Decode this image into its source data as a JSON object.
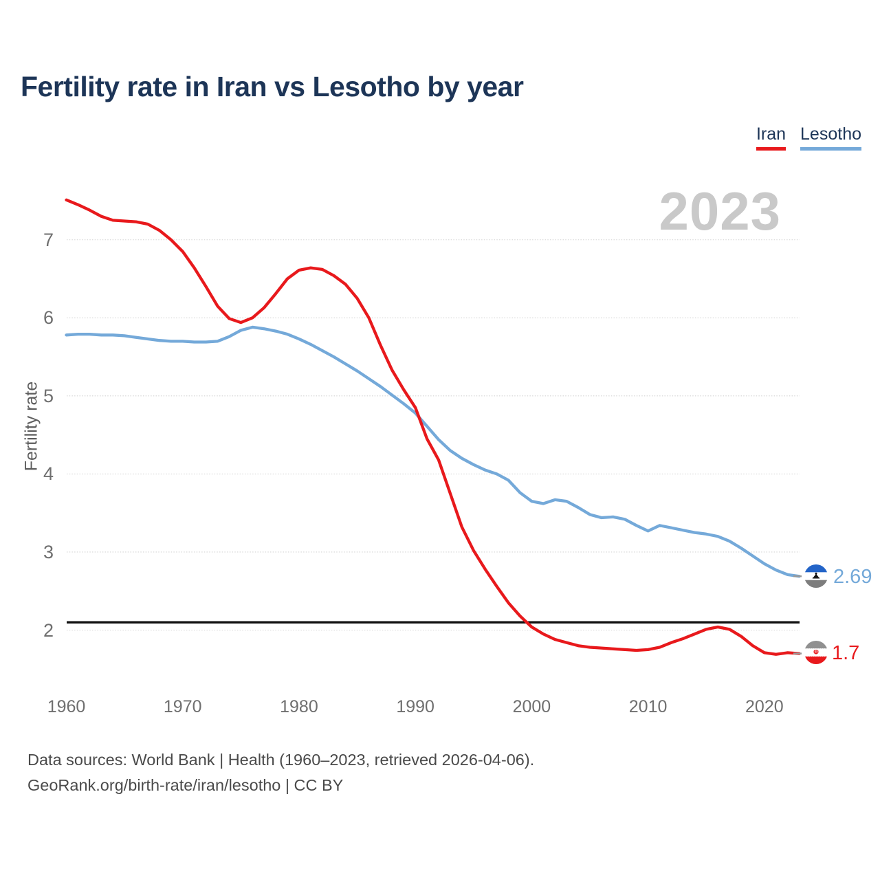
{
  "title": "Fertility rate in Iran vs Lesotho by year",
  "watermark_year": "2023",
  "legend": {
    "iran_label": "Iran",
    "lesotho_label": "Lesotho"
  },
  "axis": {
    "y_title": "Fertility rate",
    "y_ticks": [
      2,
      3,
      4,
      5,
      6,
      7
    ],
    "x_ticks": [
      1960,
      1970,
      1980,
      1990,
      2000,
      2010,
      2020
    ]
  },
  "end_labels": {
    "iran": "1.7",
    "lesotho": "2.69"
  },
  "footer": {
    "line1": "Data sources: World Bank | Health (1960–2023, retrieved 2026-04-06).",
    "line2": "GeoRank.org/birth-rate/iran/lesotho | CC BY"
  },
  "colors": {
    "iran": "#e8191c",
    "lesotho": "#74a9d9",
    "title_text": "#1d3557",
    "watermark": "#c9c9c9",
    "axis_text": "#6f6f6f",
    "footer_text": "#4a4a4a",
    "gridline": "#d4d4d4",
    "replacement_line": "#111111",
    "end_tick": "#999999"
  },
  "chart_data": {
    "type": "line",
    "title": "Fertility rate in Iran vs Lesotho by year",
    "xlabel": "",
    "ylabel": "Fertility rate",
    "xlim": [
      1960,
      2023
    ],
    "ylim": [
      1.55,
      7.65
    ],
    "grid": "horizontal",
    "legend_position": "top-right",
    "reference_line": {
      "value": 2.1,
      "meaning": "replacement-level fertility"
    },
    "x": [
      1960,
      1961,
      1962,
      1963,
      1964,
      1965,
      1966,
      1967,
      1968,
      1969,
      1970,
      1971,
      1972,
      1973,
      1974,
      1975,
      1976,
      1977,
      1978,
      1979,
      1980,
      1981,
      1982,
      1983,
      1984,
      1985,
      1986,
      1987,
      1988,
      1989,
      1990,
      1991,
      1992,
      1993,
      1994,
      1995,
      1996,
      1997,
      1998,
      1999,
      2000,
      2001,
      2002,
      2003,
      2004,
      2005,
      2006,
      2007,
      2008,
      2009,
      2010,
      2011,
      2012,
      2013,
      2014,
      2015,
      2016,
      2017,
      2018,
      2019,
      2020,
      2021,
      2022,
      2023
    ],
    "series": [
      {
        "name": "Iran",
        "color": "#e8191c",
        "end_value_label": "1.7",
        "values": [
          7.51,
          7.45,
          7.38,
          7.3,
          7.25,
          7.24,
          7.23,
          7.2,
          7.12,
          7.0,
          6.85,
          6.64,
          6.4,
          6.15,
          5.99,
          5.94,
          6.0,
          6.13,
          6.31,
          6.5,
          6.61,
          6.64,
          6.62,
          6.54,
          6.43,
          6.25,
          6.0,
          5.65,
          5.33,
          5.08,
          4.85,
          4.45,
          4.18,
          3.75,
          3.32,
          3.02,
          2.78,
          2.56,
          2.35,
          2.18,
          2.04,
          1.95,
          1.88,
          1.84,
          1.8,
          1.78,
          1.77,
          1.76,
          1.75,
          1.74,
          1.75,
          1.78,
          1.84,
          1.89,
          1.95,
          2.01,
          2.04,
          2.01,
          1.92,
          1.8,
          1.71,
          1.69,
          1.71,
          1.7
        ]
      },
      {
        "name": "Lesotho",
        "color": "#74a9d9",
        "end_value_label": "2.69",
        "values": [
          5.78,
          5.79,
          5.79,
          5.78,
          5.78,
          5.77,
          5.75,
          5.73,
          5.71,
          5.7,
          5.7,
          5.69,
          5.69,
          5.7,
          5.76,
          5.84,
          5.88,
          5.86,
          5.83,
          5.79,
          5.73,
          5.66,
          5.58,
          5.5,
          5.41,
          5.32,
          5.22,
          5.12,
          5.01,
          4.9,
          4.78,
          4.61,
          4.44,
          4.3,
          4.2,
          4.12,
          4.05,
          4.0,
          3.92,
          3.76,
          3.65,
          3.62,
          3.67,
          3.65,
          3.57,
          3.48,
          3.44,
          3.45,
          3.42,
          3.34,
          3.27,
          3.34,
          3.31,
          3.28,
          3.25,
          3.23,
          3.2,
          3.14,
          3.05,
          2.95,
          2.85,
          2.77,
          2.71,
          2.69
        ]
      }
    ]
  }
}
